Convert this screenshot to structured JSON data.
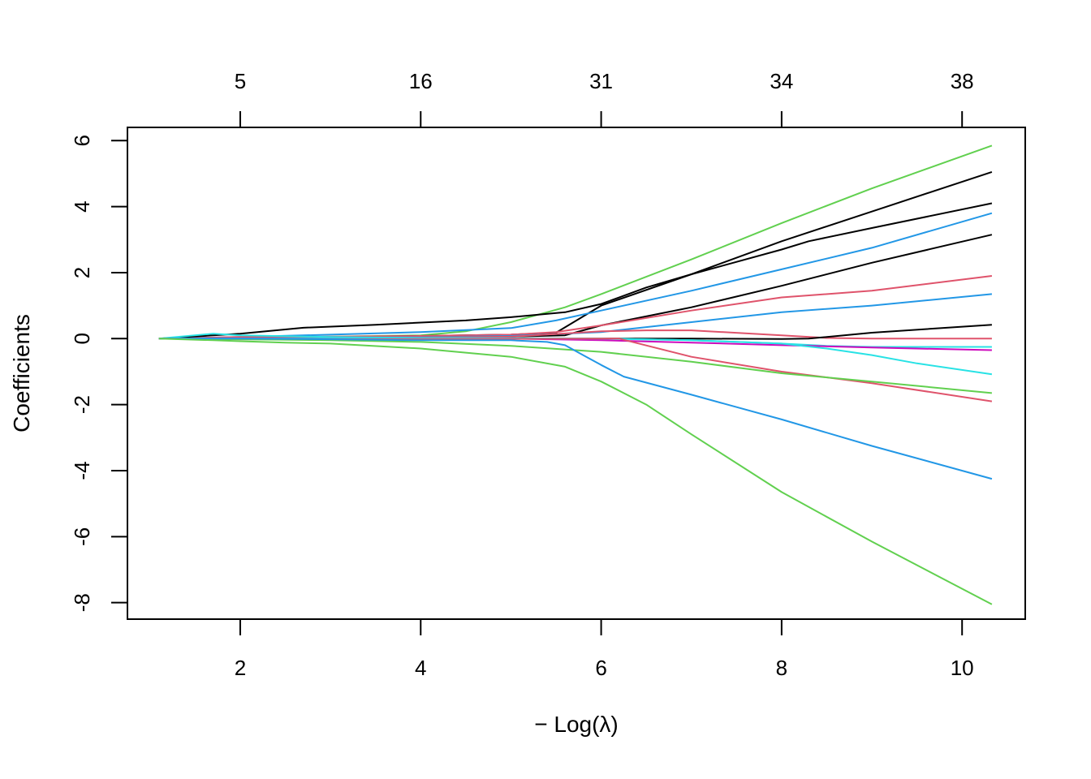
{
  "chart_data": {
    "type": "line",
    "title": "",
    "xlabel": "− Log(λ)",
    "ylabel": "Coefficients",
    "xlim": [
      0.75,
      10.7
    ],
    "ylim": [
      -8.5,
      6.4
    ],
    "x_ticks": [
      2,
      4,
      6,
      8,
      10
    ],
    "y_ticks": [
      6,
      4,
      2,
      0,
      -2,
      -4,
      -6,
      -8
    ],
    "top_axis": {
      "positions": [
        2,
        4,
        6,
        8,
        10
      ],
      "labels": [
        "5",
        "16",
        "31",
        "34",
        "38"
      ]
    },
    "grid": false,
    "legend": "none",
    "series": [
      {
        "color": "#61D04F",
        "x": [
          1.1,
          2.0,
          3.0,
          4.0,
          4.5,
          5.0,
          5.6,
          6.0,
          7.0,
          8.0,
          9.0,
          10.33
        ],
        "values": [
          0,
          0.03,
          0.06,
          0.1,
          0.22,
          0.5,
          0.95,
          1.35,
          2.4,
          3.5,
          4.55,
          5.85
        ]
      },
      {
        "color": "#000000",
        "x": [
          1.1,
          2.0,
          3.0,
          4.0,
          5.0,
          5.5,
          6.0,
          7.0,
          8.0,
          9.0,
          10.33
        ],
        "values": [
          0,
          0.02,
          0.05,
          0.08,
          0.12,
          0.18,
          1.0,
          1.95,
          2.95,
          3.85,
          5.05
        ]
      },
      {
        "color": "#2297E6",
        "x": [
          1.1,
          2.0,
          3.0,
          4.0,
          5.0,
          5.5,
          6.0,
          7.0,
          8.0,
          9.0,
          10.33
        ],
        "values": [
          0,
          0.05,
          0.12,
          0.2,
          0.32,
          0.55,
          0.85,
          1.45,
          2.1,
          2.75,
          3.8
        ]
      },
      {
        "color": "#000000",
        "x": [
          1.1,
          2.0,
          3.0,
          4.0,
          5.0,
          5.6,
          6.0,
          7.0,
          8.0,
          9.0,
          10.33
        ],
        "values": [
          0,
          0.03,
          0.05,
          0.07,
          0.06,
          0.1,
          0.4,
          0.95,
          1.6,
          2.3,
          3.15
        ]
      },
      {
        "color": "#DF536B",
        "x": [
          1.1,
          2.0,
          3.0,
          4.0,
          5.0,
          5.5,
          6.0,
          7.0,
          8.0,
          9.0,
          10.33
        ],
        "values": [
          0,
          0.05,
          0.06,
          0.08,
          0.12,
          0.2,
          0.4,
          0.85,
          1.25,
          1.45,
          1.9
        ]
      },
      {
        "color": "#2297E6",
        "x": [
          1.1,
          2.0,
          3.0,
          4.0,
          5.0,
          6.0,
          7.0,
          8.0,
          9.0,
          10.33
        ],
        "values": [
          0,
          0.02,
          0.03,
          0.04,
          0.08,
          0.2,
          0.5,
          0.8,
          1.0,
          1.35
        ]
      },
      {
        "color": "#000000",
        "x": [
          1.1,
          2.0,
          2.7,
          3.5,
          4.5,
          5.0,
          5.6,
          6.0,
          6.5,
          7.0,
          8.0,
          8.3,
          9.0,
          10.33
        ],
        "values": [
          0,
          0.15,
          0.33,
          0.42,
          0.55,
          0.65,
          0.8,
          1.05,
          1.55,
          1.95,
          2.7,
          2.95,
          3.35,
          4.1
        ]
      },
      {
        "color": "#DF536B",
        "x": [
          1.1,
          2.0,
          3.0,
          4.0,
          5.0,
          6.0,
          6.5,
          7.0,
          8.0,
          8.5,
          9.0,
          10.33
        ],
        "values": [
          0,
          0.02,
          0.02,
          0.03,
          0.06,
          0.22,
          0.25,
          0.25,
          0.1,
          0.02,
          0.0,
          0.0
        ]
      },
      {
        "color": "#000000",
        "x": [
          1.1,
          2.0,
          3.0,
          4.0,
          5.0,
          6.0,
          7.0,
          8.0,
          8.3,
          9.0,
          10.33
        ],
        "values": [
          0,
          -0.01,
          -0.01,
          -0.01,
          0.0,
          0.0,
          0.0,
          -0.01,
          0.0,
          0.18,
          0.42
        ]
      },
      {
        "color": "#28E2E5",
        "x": [
          1.1,
          1.7,
          2.0,
          3.0,
          4.0,
          5.0,
          6.0,
          7.0,
          8.0,
          8.5,
          9.0,
          9.5,
          10.33
        ],
        "values": [
          0,
          0.15,
          0.1,
          0.05,
          0.02,
          0.01,
          0.0,
          -0.05,
          -0.15,
          -0.22,
          -0.25,
          -0.25,
          -0.25
        ]
      },
      {
        "color": "#CD0BBC",
        "x": [
          1.1,
          2.0,
          3.0,
          4.0,
          5.0,
          6.0,
          7.0,
          8.0,
          9.0,
          10.33
        ],
        "values": [
          0,
          0.0,
          0.0,
          0.0,
          0.0,
          -0.05,
          -0.12,
          -0.2,
          -0.27,
          -0.35
        ]
      },
      {
        "color": "#28E2E5",
        "x": [
          1.1,
          2.0,
          3.0,
          4.0,
          5.0,
          6.0,
          7.0,
          8.0,
          8.5,
          9.0,
          9.5,
          10.33
        ],
        "values": [
          0,
          0.0,
          0.0,
          0.0,
          0.0,
          0.0,
          -0.05,
          -0.15,
          -0.3,
          -0.5,
          -0.75,
          -1.08
        ]
      },
      {
        "color": "#DF536B",
        "x": [
          1.1,
          2.0,
          3.0,
          4.0,
          5.0,
          6.0,
          6.2,
          7.0,
          8.0,
          9.0,
          10.33
        ],
        "values": [
          0,
          -0.02,
          -0.02,
          -0.02,
          -0.01,
          0.0,
          0.0,
          -0.55,
          -1.0,
          -1.35,
          -1.9
        ]
      },
      {
        "color": "#61D04F",
        "x": [
          1.1,
          2.0,
          3.0,
          4.0,
          5.0,
          6.0,
          7.0,
          8.0,
          9.0,
          10.33
        ],
        "values": [
          0,
          -0.02,
          -0.05,
          -0.1,
          -0.22,
          -0.4,
          -0.7,
          -1.05,
          -1.3,
          -1.65
        ]
      },
      {
        "color": "#2297E6",
        "x": [
          1.1,
          2.0,
          3.0,
          4.0,
          5.0,
          5.4,
          5.6,
          5.8,
          6.0,
          6.25,
          7.0,
          8.0,
          9.0,
          10.33
        ],
        "values": [
          0,
          0.0,
          -0.02,
          -0.05,
          -0.05,
          -0.1,
          -0.2,
          -0.5,
          -0.8,
          -1.15,
          -1.7,
          -2.45,
          -3.25,
          -4.25
        ]
      },
      {
        "color": "#61D04F",
        "x": [
          1.1,
          1.7,
          2.0,
          2.5,
          3.0,
          4.0,
          5.0,
          5.6,
          6.0,
          6.5,
          7.0,
          8.0,
          9.0,
          10.33
        ],
        "values": [
          0,
          -0.05,
          -0.08,
          -0.12,
          -0.15,
          -0.3,
          -0.55,
          -0.85,
          -1.3,
          -2.0,
          -2.9,
          -4.65,
          -6.15,
          -8.05
        ]
      }
    ]
  }
}
